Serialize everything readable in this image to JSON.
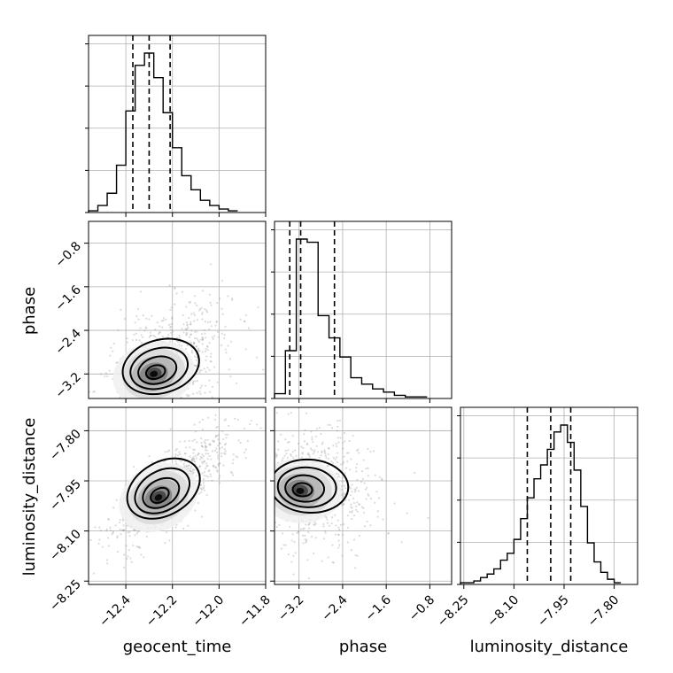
{
  "chart_data": {
    "type": "corner",
    "parameters": [
      "geocent_time",
      "phase",
      "luminosity_distance"
    ],
    "ranges": {
      "geocent_time": [
        -12.56,
        -11.8
      ],
      "phase": [
        -3.65,
        -0.4
      ],
      "luminosity_distance": [
        -8.26,
        -7.73
      ]
    },
    "ticks": {
      "geocent_time": [
        -12.4,
        -12.2,
        -12.0,
        -11.8
      ],
      "phase": [
        -3.2,
        -2.4,
        -1.6,
        -0.8
      ],
      "luminosity_distance": [
        -8.25,
        -8.1,
        -7.95,
        -7.8
      ]
    },
    "tick_labels": {
      "geocent_time": [
        "−12.4",
        "−12.2",
        "−12.0",
        "−11.8"
      ],
      "phase": [
        "−3.2",
        "−2.4",
        "−1.6",
        "−0.8"
      ],
      "luminosity_distance": [
        "−8.25",
        "−8.10",
        "−7.95",
        "−7.80"
      ]
    },
    "quantiles": {
      "geocent_time": [
        -12.37,
        -12.3,
        -12.21
      ],
      "phase": [
        -3.37,
        -3.17,
        -2.55
      ],
      "luminosity_distance": [
        -8.06,
        -7.99,
        -7.93
      ]
    },
    "histograms": {
      "geocent_time": {
        "bins": [
          -12.56,
          -12.52,
          -12.48,
          -12.44,
          -12.4,
          -12.36,
          -12.32,
          -12.28,
          -12.24,
          -12.2,
          -12.16,
          -12.12,
          -12.08,
          -12.04,
          -12.0,
          -11.96,
          -11.92
        ],
        "counts": [
          1,
          4,
          11,
          27,
          58,
          84,
          91,
          77,
          57,
          37,
          21,
          13,
          7,
          4,
          2,
          1
        ]
      },
      "phase": {
        "bins": [
          -3.65,
          -3.45,
          -3.25,
          -3.05,
          -2.85,
          -2.65,
          -2.45,
          -2.25,
          -2.05,
          -1.85,
          -1.65,
          -1.45,
          -1.25,
          -1.05,
          -0.85
        ],
        "counts": [
          3,
          30,
          100,
          98,
          52,
          38,
          26,
          13,
          9,
          6,
          4,
          2,
          1,
          1
        ]
      },
      "luminosity_distance": {
        "bins": [
          -8.26,
          -8.24,
          -8.22,
          -8.2,
          -8.18,
          -8.16,
          -8.14,
          -8.12,
          -8.1,
          -8.08,
          -8.06,
          -8.04,
          -8.02,
          -8.0,
          -7.98,
          -7.96,
          -7.94,
          -7.92,
          -7.9,
          -7.88,
          -7.86,
          -7.84,
          -7.82,
          -7.8,
          -7.78
        ],
        "counts": [
          1,
          1,
          2,
          4,
          6,
          9,
          14,
          18,
          26,
          38,
          50,
          61,
          69,
          78,
          88,
          92,
          82,
          66,
          45,
          24,
          13,
          7,
          3,
          1
        ]
      }
    },
    "correlations": {
      "phase_vs_geocent_time": 0.45,
      "luminosity_distance_vs_geocent_time": 0.85,
      "luminosity_distance_vs_phase": -0.1
    },
    "peaks": {
      "phase_vs_geocent_time": [
        -12.28,
        -3.2
      ],
      "luminosity_distance_vs_geocent_time": [
        -12.26,
        -8.0
      ],
      "luminosity_distance_vs_phase": [
        -3.18,
        -7.98
      ]
    },
    "levels": [
      0.118,
      0.393,
      0.675,
      0.865
    ],
    "grid": true
  }
}
